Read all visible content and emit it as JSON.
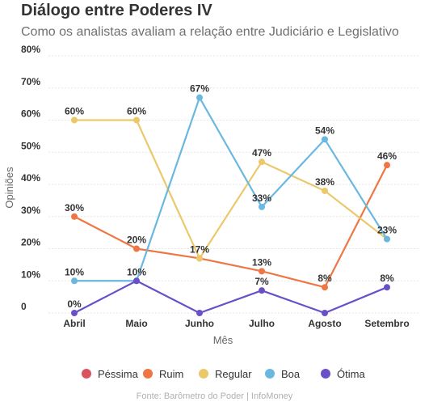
{
  "title": "Diálogo entre Poderes IV",
  "subtitle": "Como os analistas avaliam a relação entre Judiciário e Legislativo",
  "source": "Fonte: Barômetro do Poder | InfoMoney",
  "chart_data": {
    "type": "line",
    "categories": [
      "Abril",
      "Maio",
      "Junho",
      "Julho",
      "Agosto",
      "Setembro"
    ],
    "xlabel": "Mês",
    "ylabel": "Opiniões",
    "ylim": [
      0,
      80
    ],
    "yticks": [
      "0",
      "10%",
      "20%",
      "30%",
      "40%",
      "50%",
      "60%",
      "70%",
      "80%"
    ],
    "grid": true,
    "legend_position": "bottom",
    "series": [
      {
        "name": "Péssima",
        "color": "#d9545f",
        "values": [
          null,
          null,
          null,
          null,
          null,
          null
        ],
        "labels": [
          "",
          "",
          "",
          "",
          "",
          ""
        ]
      },
      {
        "name": "Ruim",
        "color": "#ef7644",
        "values": [
          30,
          20,
          17,
          13,
          8,
          46
        ],
        "labels": [
          "30%",
          "20%",
          "17%",
          "13%",
          "8%",
          "46%"
        ]
      },
      {
        "name": "Regular",
        "color": "#ebc96b",
        "values": [
          60,
          60,
          17,
          47,
          38,
          23
        ],
        "labels": [
          "60%",
          "60%",
          "",
          "47%",
          "38%",
          ""
        ]
      },
      {
        "name": "Boa",
        "color": "#6ab8e0",
        "values": [
          10,
          10,
          67,
          33,
          54,
          23
        ],
        "labels": [
          "10%",
          "",
          "67%",
          "33%",
          "54%",
          "23%"
        ]
      },
      {
        "name": "Ótima",
        "color": "#6a50c8",
        "values": [
          0,
          10,
          0,
          7,
          0,
          8
        ],
        "labels": [
          "0%",
          "10%",
          "",
          "7%",
          "",
          "8%"
        ]
      }
    ]
  }
}
